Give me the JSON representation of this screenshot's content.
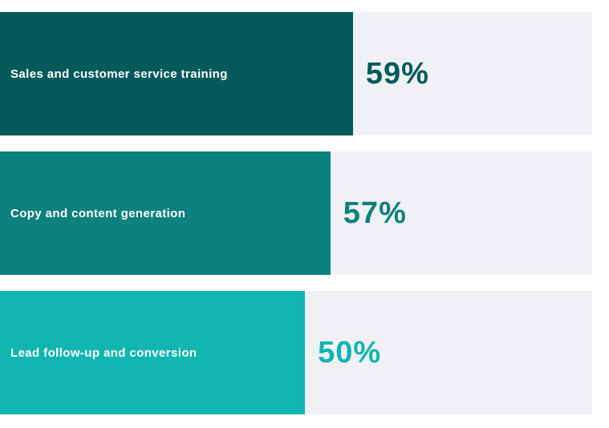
{
  "chart_data": {
    "type": "bar",
    "orientation": "horizontal",
    "title": "",
    "xlabel": "",
    "ylabel": "",
    "xlim": [
      0,
      100
    ],
    "grid": false,
    "legend": false,
    "categories": [
      "Sales and customer service training",
      "Copy and content generation",
      "Lead follow-up and conversion"
    ],
    "values": [
      59,
      57,
      50
    ],
    "value_labels": [
      "59%",
      "57%",
      "50%"
    ],
    "bar_colors": [
      "#045A5B",
      "#0E807E",
      "#11B5B1"
    ],
    "track_color": "#EFF1F4",
    "label_color": "#FFFFFF",
    "bar_width_pct": [
      59.6,
      55.8,
      51.5
    ]
  }
}
